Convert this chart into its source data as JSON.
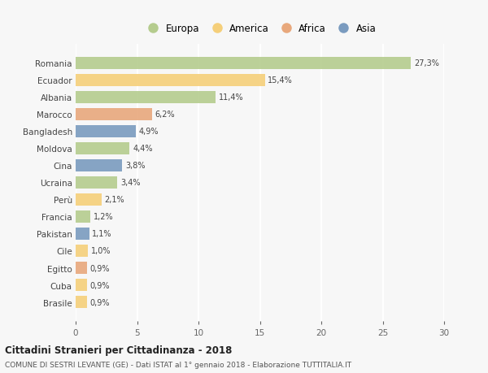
{
  "categories": [
    "Romania",
    "Ecuador",
    "Albania",
    "Marocco",
    "Bangladesh",
    "Moldova",
    "Cina",
    "Ucraina",
    "Perù",
    "Francia",
    "Pakistan",
    "Cile",
    "Egitto",
    "Cuba",
    "Brasile"
  ],
  "values": [
    27.3,
    15.4,
    11.4,
    6.2,
    4.9,
    4.4,
    3.8,
    3.4,
    2.1,
    1.2,
    1.1,
    1.0,
    0.9,
    0.9,
    0.9
  ],
  "labels": [
    "27,3%",
    "15,4%",
    "11,4%",
    "6,2%",
    "4,9%",
    "4,4%",
    "3,8%",
    "3,4%",
    "2,1%",
    "1,2%",
    "1,1%",
    "1,0%",
    "0,9%",
    "0,9%",
    "0,9%"
  ],
  "continents": [
    "Europa",
    "America",
    "Europa",
    "Africa",
    "Asia",
    "Europa",
    "Asia",
    "Europa",
    "America",
    "Europa",
    "Asia",
    "America",
    "Africa",
    "America",
    "America"
  ],
  "colors": {
    "Europa": "#b5cc8e",
    "America": "#f5cf7a",
    "Africa": "#e8a87c",
    "Asia": "#7a9bbf"
  },
  "legend_order": [
    "Europa",
    "America",
    "Africa",
    "Asia"
  ],
  "title": "Cittadini Stranieri per Cittadinanza - 2018",
  "subtitle": "COMUNE DI SESTRI LEVANTE (GE) - Dati ISTAT al 1° gennaio 2018 - Elaborazione TUTTITALIA.IT",
  "xlim": [
    0,
    30
  ],
  "xticks": [
    0,
    5,
    10,
    15,
    20,
    25,
    30
  ],
  "background_color": "#f7f7f7",
  "grid_color": "#ffffff",
  "bar_height": 0.72
}
